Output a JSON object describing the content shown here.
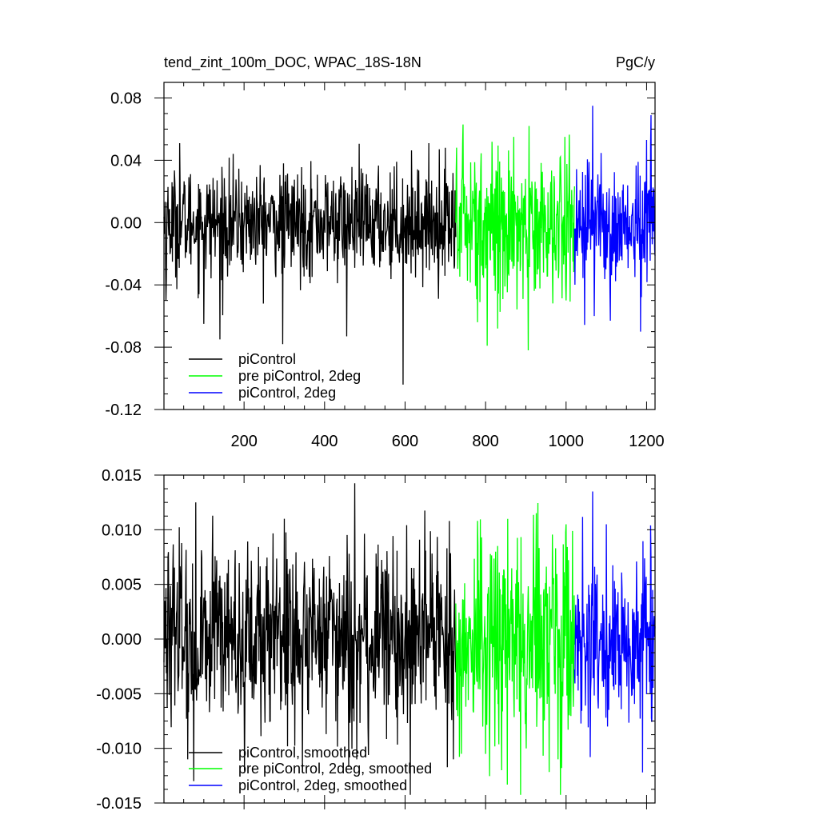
{
  "chart_data": [
    {
      "type": "line",
      "title_left": "tend_zint_100m_DOC, WPAC_18S-18N",
      "title_right": "PgC/y",
      "xlim": [
        1,
        1221
      ],
      "ylim": [
        -0.12,
        0.09
      ],
      "xticks": [
        200,
        400,
        600,
        800,
        1000,
        1200
      ],
      "xticklabels": [
        "200",
        "400",
        "600",
        "800",
        "1000",
        "1200"
      ],
      "yticks": [
        0.08,
        0.04,
        0.0,
        -0.04,
        -0.08,
        -0.12
      ],
      "yticklabels": [
        "0.08",
        "0.04",
        "0.00",
        "-0.04",
        "-0.08",
        "-0.12"
      ],
      "legend_position": "bottom-left",
      "series": [
        {
          "name": "piControl",
          "color": "#000000",
          "x_range": [
            1,
            726
          ],
          "noise_sd": 0.017,
          "peaks": [
            [
              6,
              -0.05
            ],
            [
              40,
              0.051
            ],
            [
              100,
              -0.065
            ],
            [
              140,
              -0.075
            ],
            [
              296,
              -0.078
            ],
            [
              455,
              -0.073
            ],
            [
              595,
              -0.104
            ],
            [
              700,
              0.048
            ]
          ]
        },
        {
          "name": "pre piControl, 2deg",
          "color": "#00ff00",
          "x_range": [
            726,
            1021
          ],
          "noise_sd": 0.024,
          "peaks": [
            [
              744,
              0.063
            ],
            [
              780,
              -0.064
            ],
            [
              830,
              -0.068
            ],
            [
              870,
              0.055
            ],
            [
              906,
              -0.082
            ],
            [
              908,
              0.062
            ],
            [
              1000,
              -0.05
            ]
          ]
        },
        {
          "name": "piControl, 2deg",
          "color": "#0000ff",
          "x_range": [
            1021,
            1221
          ],
          "noise_sd": 0.019,
          "peaks": [
            [
              1066,
              0.075
            ],
            [
              1070,
              -0.06
            ],
            [
              1110,
              -0.063
            ],
            [
              1185,
              -0.07
            ],
            [
              1200,
              0.053
            ],
            [
              1210,
              0.05
            ]
          ]
        }
      ]
    },
    {
      "type": "line",
      "xlim": [
        1,
        1221
      ],
      "ylim": [
        -0.015,
        0.015
      ],
      "xticks": [
        200,
        400,
        600,
        800,
        1000,
        1200
      ],
      "yticks": [
        0.015,
        0.01,
        0.005,
        0.0,
        -0.005,
        -0.01,
        -0.015
      ],
      "yticklabels": [
        "0.015",
        "0.010",
        "0.005",
        "0.000",
        "-0.005",
        "-0.010",
        "-0.015"
      ],
      "legend_position": "bottom-left",
      "series": [
        {
          "name": "piControl, smoothed",
          "color": "#000000",
          "x_range": [
            1,
            726
          ],
          "noise_sd": 0.0042,
          "peaks": [
            [
              80,
              0.0125
            ],
            [
              60,
              -0.011
            ],
            [
              75,
              -0.013
            ],
            [
              300,
              0.011
            ],
            [
              480,
              -0.011
            ],
            [
              710,
              0.0108
            ],
            [
              720,
              -0.011
            ]
          ]
        },
        {
          "name": "pre piControl, 2deg, smoothed",
          "color": "#00ff00",
          "x_range": [
            726,
            1021
          ],
          "noise_sd": 0.0052,
          "peaks": [
            [
              740,
              -0.0105
            ],
            [
              790,
              0.0093
            ],
            [
              840,
              -0.012
            ],
            [
              980,
              -0.011
            ],
            [
              1000,
              0.0105
            ]
          ]
        },
        {
          "name": "piControl, 2deg, smoothed",
          "color": "#0000ff",
          "x_range": [
            1021,
            1221
          ],
          "noise_sd": 0.004,
          "peaks": [
            [
              1066,
              0.0135
            ],
            [
              1060,
              -0.0108
            ],
            [
              1100,
              0.0105
            ],
            [
              1190,
              -0.0122
            ],
            [
              1210,
              0.0104
            ]
          ]
        }
      ]
    }
  ]
}
